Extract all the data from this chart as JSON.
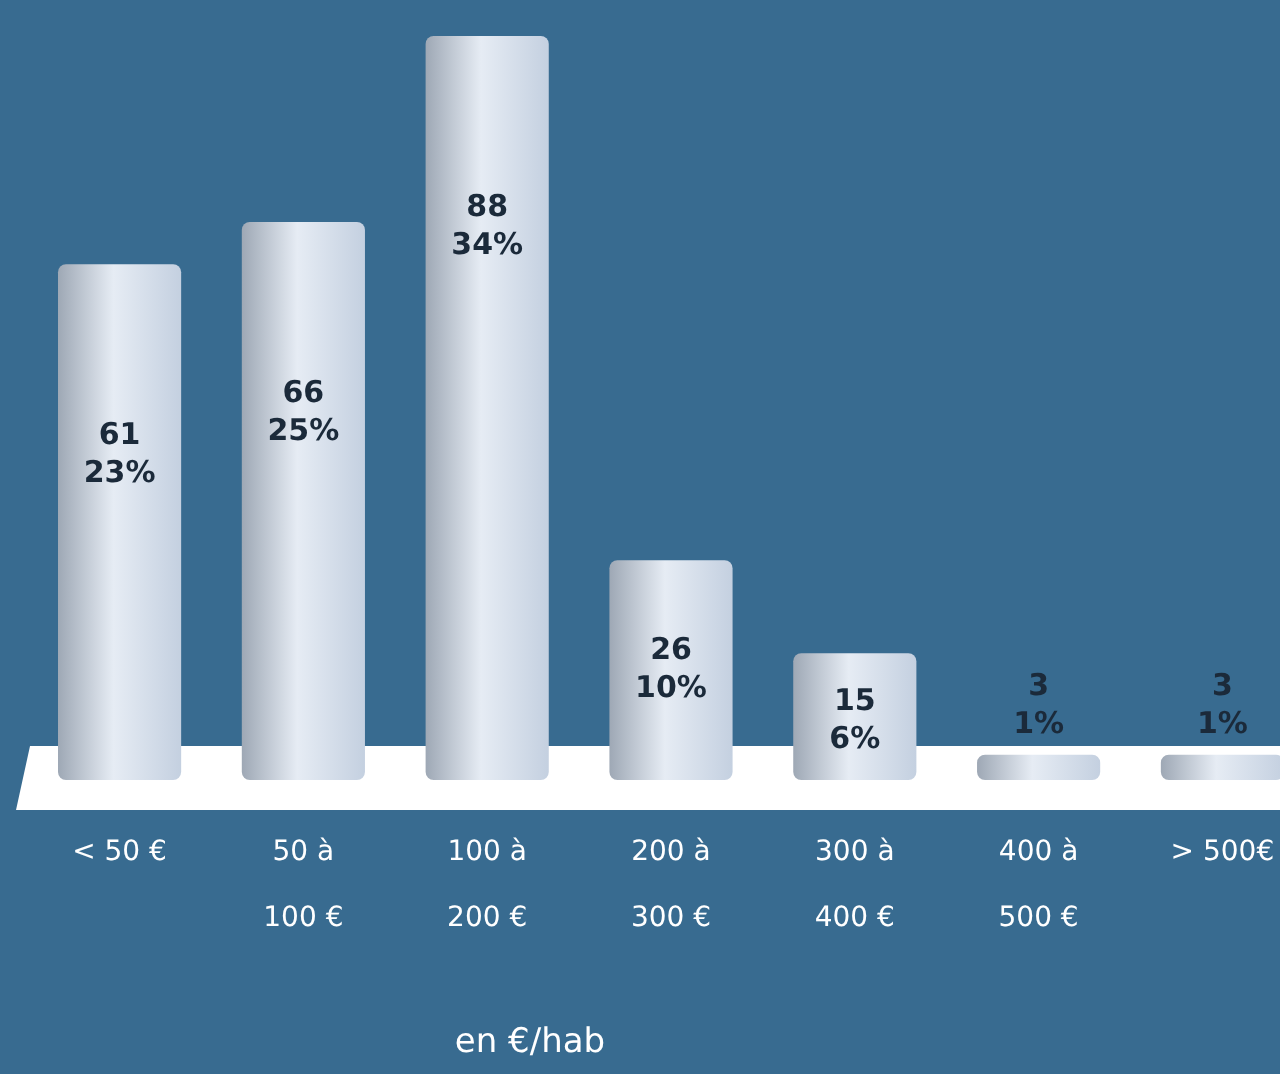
{
  "chart_data": {
    "type": "bar",
    "xlabel": "en €/hab",
    "categories": [
      "< 50 €",
      "50 à\n100 €",
      "100 à\n200 €",
      "200 à\n300 €",
      "300 à\n400 €",
      "400 à\n500 €",
      "> 500€"
    ],
    "values": [
      61,
      66,
      88,
      26,
      15,
      3,
      3
    ],
    "value_labels": [
      "61\n23%",
      "66\n25%",
      "88\n34%",
      "26\n10%",
      "15\n6%",
      "3\n1%",
      "3\n1%"
    ],
    "color": "#c4d0e0"
  }
}
